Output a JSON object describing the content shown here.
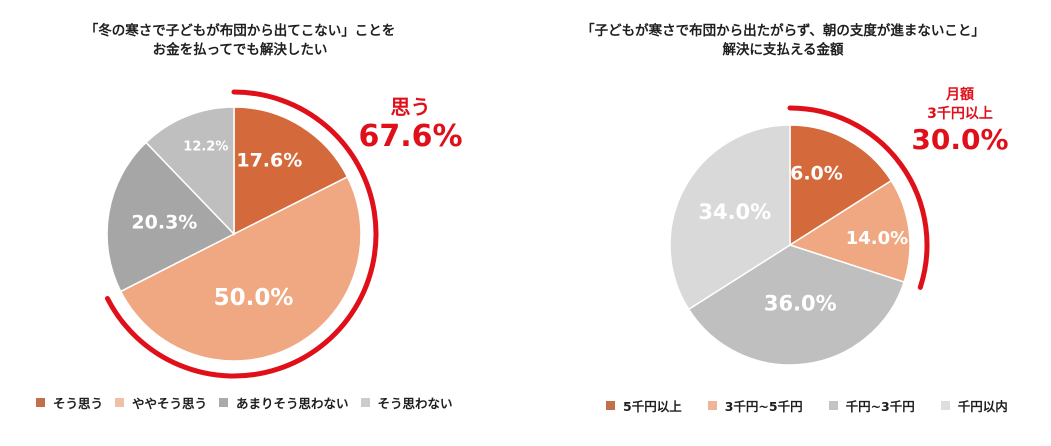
{
  "colors": {
    "accent_red": "#e0101a",
    "dark_orange": "#d46a3c",
    "light_orange": "#f0a882",
    "mid_gray": "#a6a6a6",
    "light_gray": "#bfbfbf",
    "lighter_gray": "#d9d9d9"
  },
  "left": {
    "title_line1": "「冬の寒さで子どもが布団から出てこない」ことを",
    "title_line2": "お金を払ってでも解決したい",
    "callout_label": "思う",
    "callout_value": "67.6%",
    "legend": [
      {
        "label": "そう思う",
        "color": "#d46a3c"
      },
      {
        "label": "ややそう思う",
        "color": "#f0a882"
      },
      {
        "label": "あまりそう思わない",
        "color": "#a6a6a6"
      },
      {
        "label": "そう思わない",
        "color": "#bfbfbf"
      }
    ]
  },
  "right": {
    "title_line1": "「子どもが寒さで布団から出たがらず、朝の支度が進まないこと」",
    "title_line2": "解決に支払える金額",
    "callout_line1": "月額",
    "callout_line2": "3千円以上",
    "callout_value": "30.0%",
    "legend": [
      {
        "label": "5千円以上",
        "color": "#d46a3c"
      },
      {
        "label": "3千円~5千円",
        "color": "#f0a882"
      },
      {
        "label": "千円~3千円",
        "color": "#bfbfbf"
      },
      {
        "label": "千円以内",
        "color": "#d9d9d9"
      }
    ]
  },
  "chart_data": [
    {
      "type": "pie",
      "title": "「冬の寒さで子どもが布団から出てこない」ことをお金を払ってでも解決したい",
      "categories": [
        "そう思う",
        "ややそう思う",
        "あまりそう思わない",
        "そう思わない"
      ],
      "values": [
        17.6,
        50.0,
        20.3,
        12.2
      ],
      "labels": [
        "17.6%",
        "50.0%",
        "20.3%",
        "12.2%"
      ],
      "colors": [
        "#d46a3c",
        "#f0a882",
        "#a6a6a6",
        "#bfbfbf"
      ],
      "annotation": {
        "text": "思う 67.6%",
        "covers": [
          "そう思う",
          "ややそう思う"
        ]
      },
      "legend_position": "bottom"
    },
    {
      "type": "pie",
      "title": "「子どもが寒さで布団から出たがらず、朝の支度が進まないこと」解決に支払える金額",
      "categories": [
        "5千円以上",
        "3千円~5千円",
        "千円~3千円",
        "千円以内"
      ],
      "values": [
        16.0,
        14.0,
        36.0,
        34.0
      ],
      "labels": [
        "16.0%",
        "14.0%",
        "36.0%",
        "34.0%"
      ],
      "colors": [
        "#d46a3c",
        "#f0a882",
        "#bfbfbf",
        "#d9d9d9"
      ],
      "annotation": {
        "text": "月額 3千円以上 30.0%",
        "covers": [
          "5千円以上",
          "3千円~5千円"
        ]
      },
      "legend_position": "bottom"
    }
  ]
}
